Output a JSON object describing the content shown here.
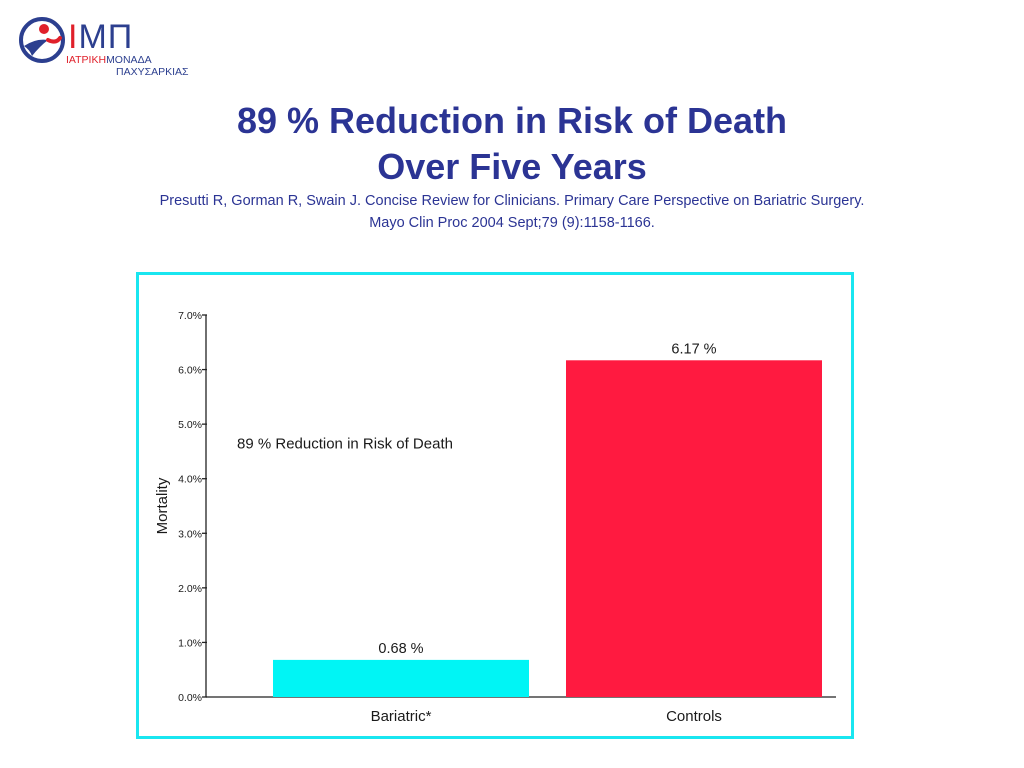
{
  "logo": {
    "letters_first": "I",
    "letters_rest": "ΜΠ",
    "line1_red": "ΙΑΤΡΙΚΗ",
    "line1_blue": "ΜΟΝΑΔΑ",
    "line2": "ΠΑΧΥΣΑΡΚΙΑΣ",
    "colors": {
      "blue": "#2c3f8f",
      "red": "#e0202a"
    }
  },
  "slide": {
    "title_line1": "89 % Reduction in Risk of Death",
    "title_line2": "Over Five Years",
    "citation_line1": "Presutti R, Gorman R, Swain J. Concise Review for Clinicians. Primary Care Perspective on Bariatric Surgery.",
    "citation_line2": "Mayo Clin Proc 2004 Sept;79 (9):1158-1166.",
    "title_color": "#2b3494",
    "frame_color": "#19e6f0"
  },
  "chart_data": {
    "type": "bar",
    "categories": [
      "Bariatric*",
      "Controls"
    ],
    "values": [
      0.68,
      6.17
    ],
    "value_labels": [
      "0.68 %",
      "6.17 %"
    ],
    "bar_colors": [
      "#00f5f5",
      "#ff1a40"
    ],
    "ylabel": "Mortality",
    "ylim": [
      0,
      7
    ],
    "yticks": [
      0,
      1,
      2,
      3,
      4,
      5,
      6,
      7
    ],
    "ytick_labels": [
      "0.0%",
      "1.0%",
      "2.0%",
      "3.0%",
      "4.0%",
      "5.0%",
      "6.0%",
      "7.0%"
    ],
    "annotation": "89 % Reduction in Risk of Death",
    "grid": false,
    "legend": "none"
  }
}
